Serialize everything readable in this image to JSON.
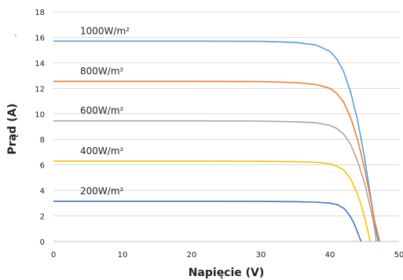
{
  "chart_data": {
    "type": "line",
    "title": "",
    "xlabel": "Napięcie (V)",
    "ylabel": "Prąd (A)",
    "xlim": [
      0,
      50
    ],
    "ylim": [
      0,
      18
    ],
    "xticks": [
      0,
      10,
      20,
      30,
      40,
      50
    ],
    "yticks": [
      0,
      2,
      4,
      6,
      8,
      10,
      12,
      14,
      16,
      18
    ],
    "grid": "horizontal",
    "legend": "none",
    "series": [
      {
        "name": "1000W/m²",
        "color": "#5b9bd5",
        "x": [
          0,
          10,
          20,
          30,
          35,
          38,
          40,
          41,
          42,
          43,
          44,
          45,
          46,
          46.5,
          47.0
        ],
        "y": [
          15.7,
          15.7,
          15.7,
          15.68,
          15.6,
          15.4,
          14.9,
          14.3,
          13.3,
          11.7,
          9.5,
          6.6,
          3.1,
          1.3,
          0
        ]
      },
      {
        "name": "800W/m²",
        "color": "#ed7d31",
        "x": [
          0,
          10,
          20,
          30,
          35,
          38,
          40,
          41,
          42,
          43,
          44,
          45,
          46,
          46.5,
          47.2
        ],
        "y": [
          12.55,
          12.55,
          12.55,
          12.53,
          12.45,
          12.3,
          12.0,
          11.6,
          10.9,
          9.7,
          8.0,
          5.7,
          3.0,
          1.5,
          0
        ]
      },
      {
        "name": "600W/m²",
        "color": "#a5a5a5",
        "x": [
          0,
          10,
          20,
          30,
          35,
          38,
          40,
          41,
          42,
          43,
          44,
          45,
          46,
          46.5,
          46.7
        ],
        "y": [
          9.45,
          9.45,
          9.45,
          9.43,
          9.38,
          9.3,
          9.1,
          8.85,
          8.4,
          7.6,
          6.3,
          4.6,
          2.3,
          0.9,
          0
        ]
      },
      {
        "name": "400W/m²",
        "color": "#ffc000",
        "x": [
          0,
          10,
          20,
          30,
          35,
          38,
          40,
          41,
          42,
          43,
          44,
          44.5,
          45,
          45.5,
          45.8
        ],
        "y": [
          6.3,
          6.3,
          6.3,
          6.28,
          6.25,
          6.2,
          6.1,
          5.9,
          5.6,
          4.9,
          3.7,
          2.9,
          1.9,
          0.8,
          0
        ]
      },
      {
        "name": "200W/m²",
        "color": "#4472c4",
        "x": [
          0,
          10,
          20,
          30,
          35,
          38,
          40,
          41,
          42,
          42.5,
          43,
          43.5,
          44,
          44.5
        ],
        "y": [
          3.15,
          3.15,
          3.15,
          3.14,
          3.12,
          3.08,
          3.0,
          2.9,
          2.6,
          2.3,
          1.9,
          1.4,
          0.7,
          0
        ]
      }
    ]
  }
}
